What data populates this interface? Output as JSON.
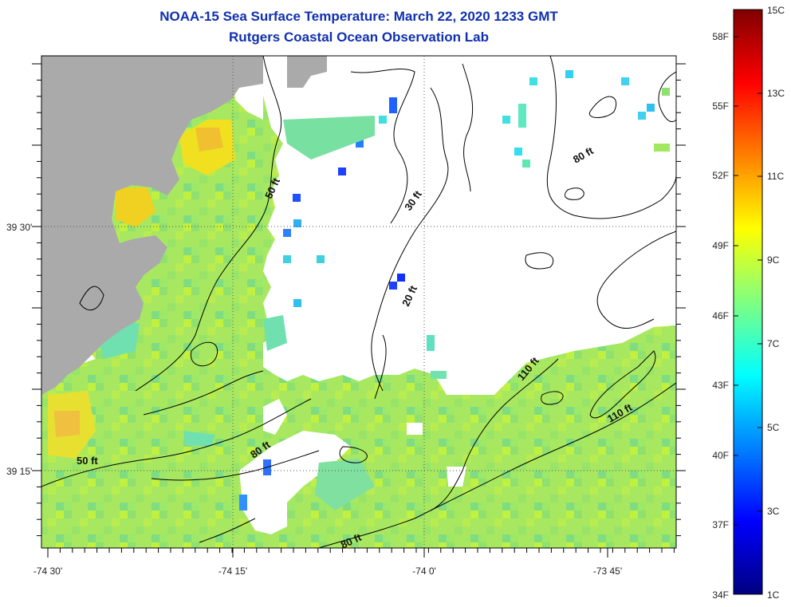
{
  "header": {
    "title": "NOAA-15 Sea Surface Temperature:  March 22, 2020 1233 GMT",
    "subtitle": "Rutgers Coastal Ocean Observation Lab"
  },
  "map": {
    "x_ticks": [
      "-74 30'",
      "-74 15'",
      "-74 0'",
      "-73 45'"
    ],
    "y_ticks": [
      "39 30'",
      "39 15'"
    ],
    "land_color": "#aaaaaa",
    "cloud_color": "#ffffff",
    "contour_labels": [
      {
        "text": "50 ft",
        "rotate": -65
      },
      {
        "text": "30 ft",
        "rotate": -55
      },
      {
        "text": "80 ft",
        "rotate": -30
      },
      {
        "text": "20 ft",
        "rotate": -65
      },
      {
        "text": "110 ft",
        "rotate": -50
      },
      {
        "text": "110 ft",
        "rotate": -30
      },
      {
        "text": "80 ft",
        "rotate": -35
      },
      {
        "text": "50 ft",
        "rotate": 0
      },
      {
        "text": "80 ft",
        "rotate": -25
      }
    ]
  },
  "colorbar": {
    "fahrenheit_labels": [
      "58F",
      "55F",
      "52F",
      "49F",
      "46F",
      "43F",
      "40F",
      "37F",
      "34F"
    ],
    "celsius_labels": [
      "15C",
      "13C",
      "11C",
      "9C",
      "7C",
      "5C",
      "3C",
      "1C"
    ],
    "gradient_colors": [
      "#000080",
      "#0000ff",
      "#0080ff",
      "#00ffff",
      "#80ff80",
      "#ffff00",
      "#ff8000",
      "#ff0000",
      "#800000"
    ]
  }
}
